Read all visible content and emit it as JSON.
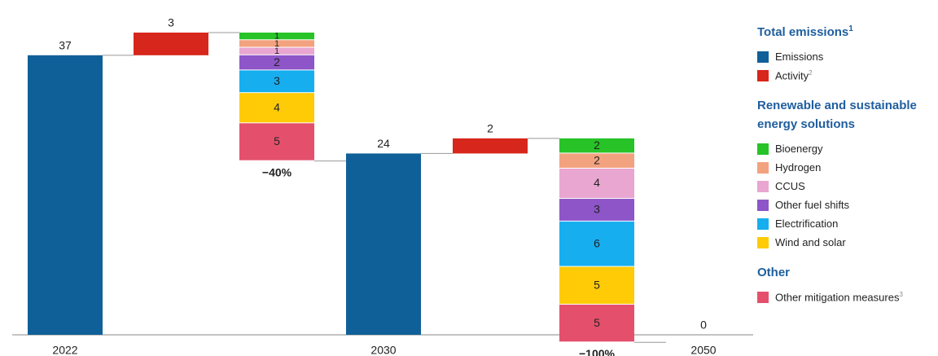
{
  "chart_data": {
    "type": "waterfall",
    "ylim": [
      0,
      40
    ],
    "categories": [
      "2022",
      null,
      "−40%",
      "2030",
      null,
      "−100%",
      "2050"
    ],
    "measures": [
      "total",
      "increase",
      "decrease",
      "total",
      "increase",
      "decrease",
      "total"
    ],
    "groups": [
      {
        "title": "Total emissions",
        "note": "1",
        "series": [
          {
            "name": "Emissions",
            "color": "#0f6098",
            "values": [
              37,
              null,
              null,
              24,
              null,
              null,
              0
            ]
          },
          {
            "name": "Activity",
            "note": "2",
            "color": "#d7261b",
            "values": [
              null,
              3,
              null,
              null,
              2,
              null,
              null
            ]
          }
        ]
      },
      {
        "title": "Renewable and sustainable energy solutions",
        "series": [
          {
            "name": "Bioenergy",
            "color": "#27c327",
            "values": [
              null,
              null,
              1,
              null,
              null,
              2,
              null
            ]
          },
          {
            "name": "Hydrogen",
            "color": "#f3a27f",
            "values": [
              null,
              null,
              1,
              null,
              null,
              2,
              null
            ]
          },
          {
            "name": "CCUS",
            "color": "#e8a6d0",
            "values": [
              null,
              null,
              1,
              null,
              null,
              4,
              null
            ]
          },
          {
            "name": "Other fuel shifts",
            "color": "#8d55c8",
            "values": [
              null,
              null,
              2,
              null,
              null,
              3,
              null
            ]
          },
          {
            "name": "Electrification",
            "color": "#17aef0",
            "values": [
              null,
              null,
              3,
              null,
              null,
              6,
              null
            ]
          },
          {
            "name": "Wind and solar",
            "color": "#ffcb06",
            "values": [
              null,
              null,
              4,
              null,
              null,
              5,
              null
            ]
          }
        ]
      },
      {
        "title": "Other",
        "series": [
          {
            "name": "Other mitigation measures",
            "note": "3",
            "color": "#e4506c",
            "values": [
              null,
              null,
              5,
              null,
              null,
              5,
              null
            ]
          }
        ]
      }
    ]
  }
}
